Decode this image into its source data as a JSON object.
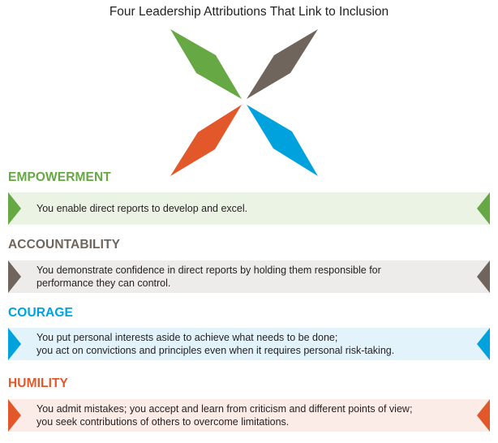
{
  "title": "Four Leadership Attributions That Link to Inclusion",
  "colors": {
    "green": "#66a844",
    "brown": "#6f655c",
    "blue": "#00a2dd",
    "orange": "#e2582a"
  },
  "logo": {
    "icon": "four-diamond-x-icon"
  },
  "attributes": [
    {
      "heading": "EMPOWERMENT",
      "color": "#66a844",
      "band_color": "#ebf3e5",
      "lines": [
        "You enable direct reports to develop and excel."
      ]
    },
    {
      "heading": "ACCOUNTABILITY",
      "color": "#6f655c",
      "band_color": "#eeecea",
      "lines": [
        "You demonstrate confidence in direct reports by holding them responsible for",
        "performance they can control."
      ]
    },
    {
      "heading": "COURAGE",
      "color": "#00a2dd",
      "band_color": "#e3f3fb",
      "lines": [
        "You put personal interests aside to achieve what needs to be done;",
        "you act on convictions and principles even when it requires personal risk-taking."
      ]
    },
    {
      "heading": "HUMILITY",
      "color": "#e2582a",
      "band_color": "#fcece7",
      "lines": [
        "You admit mistakes; you accept and learn from criticism and different points of view;",
        "you seek contributions of others to overcome limitations."
      ]
    }
  ]
}
